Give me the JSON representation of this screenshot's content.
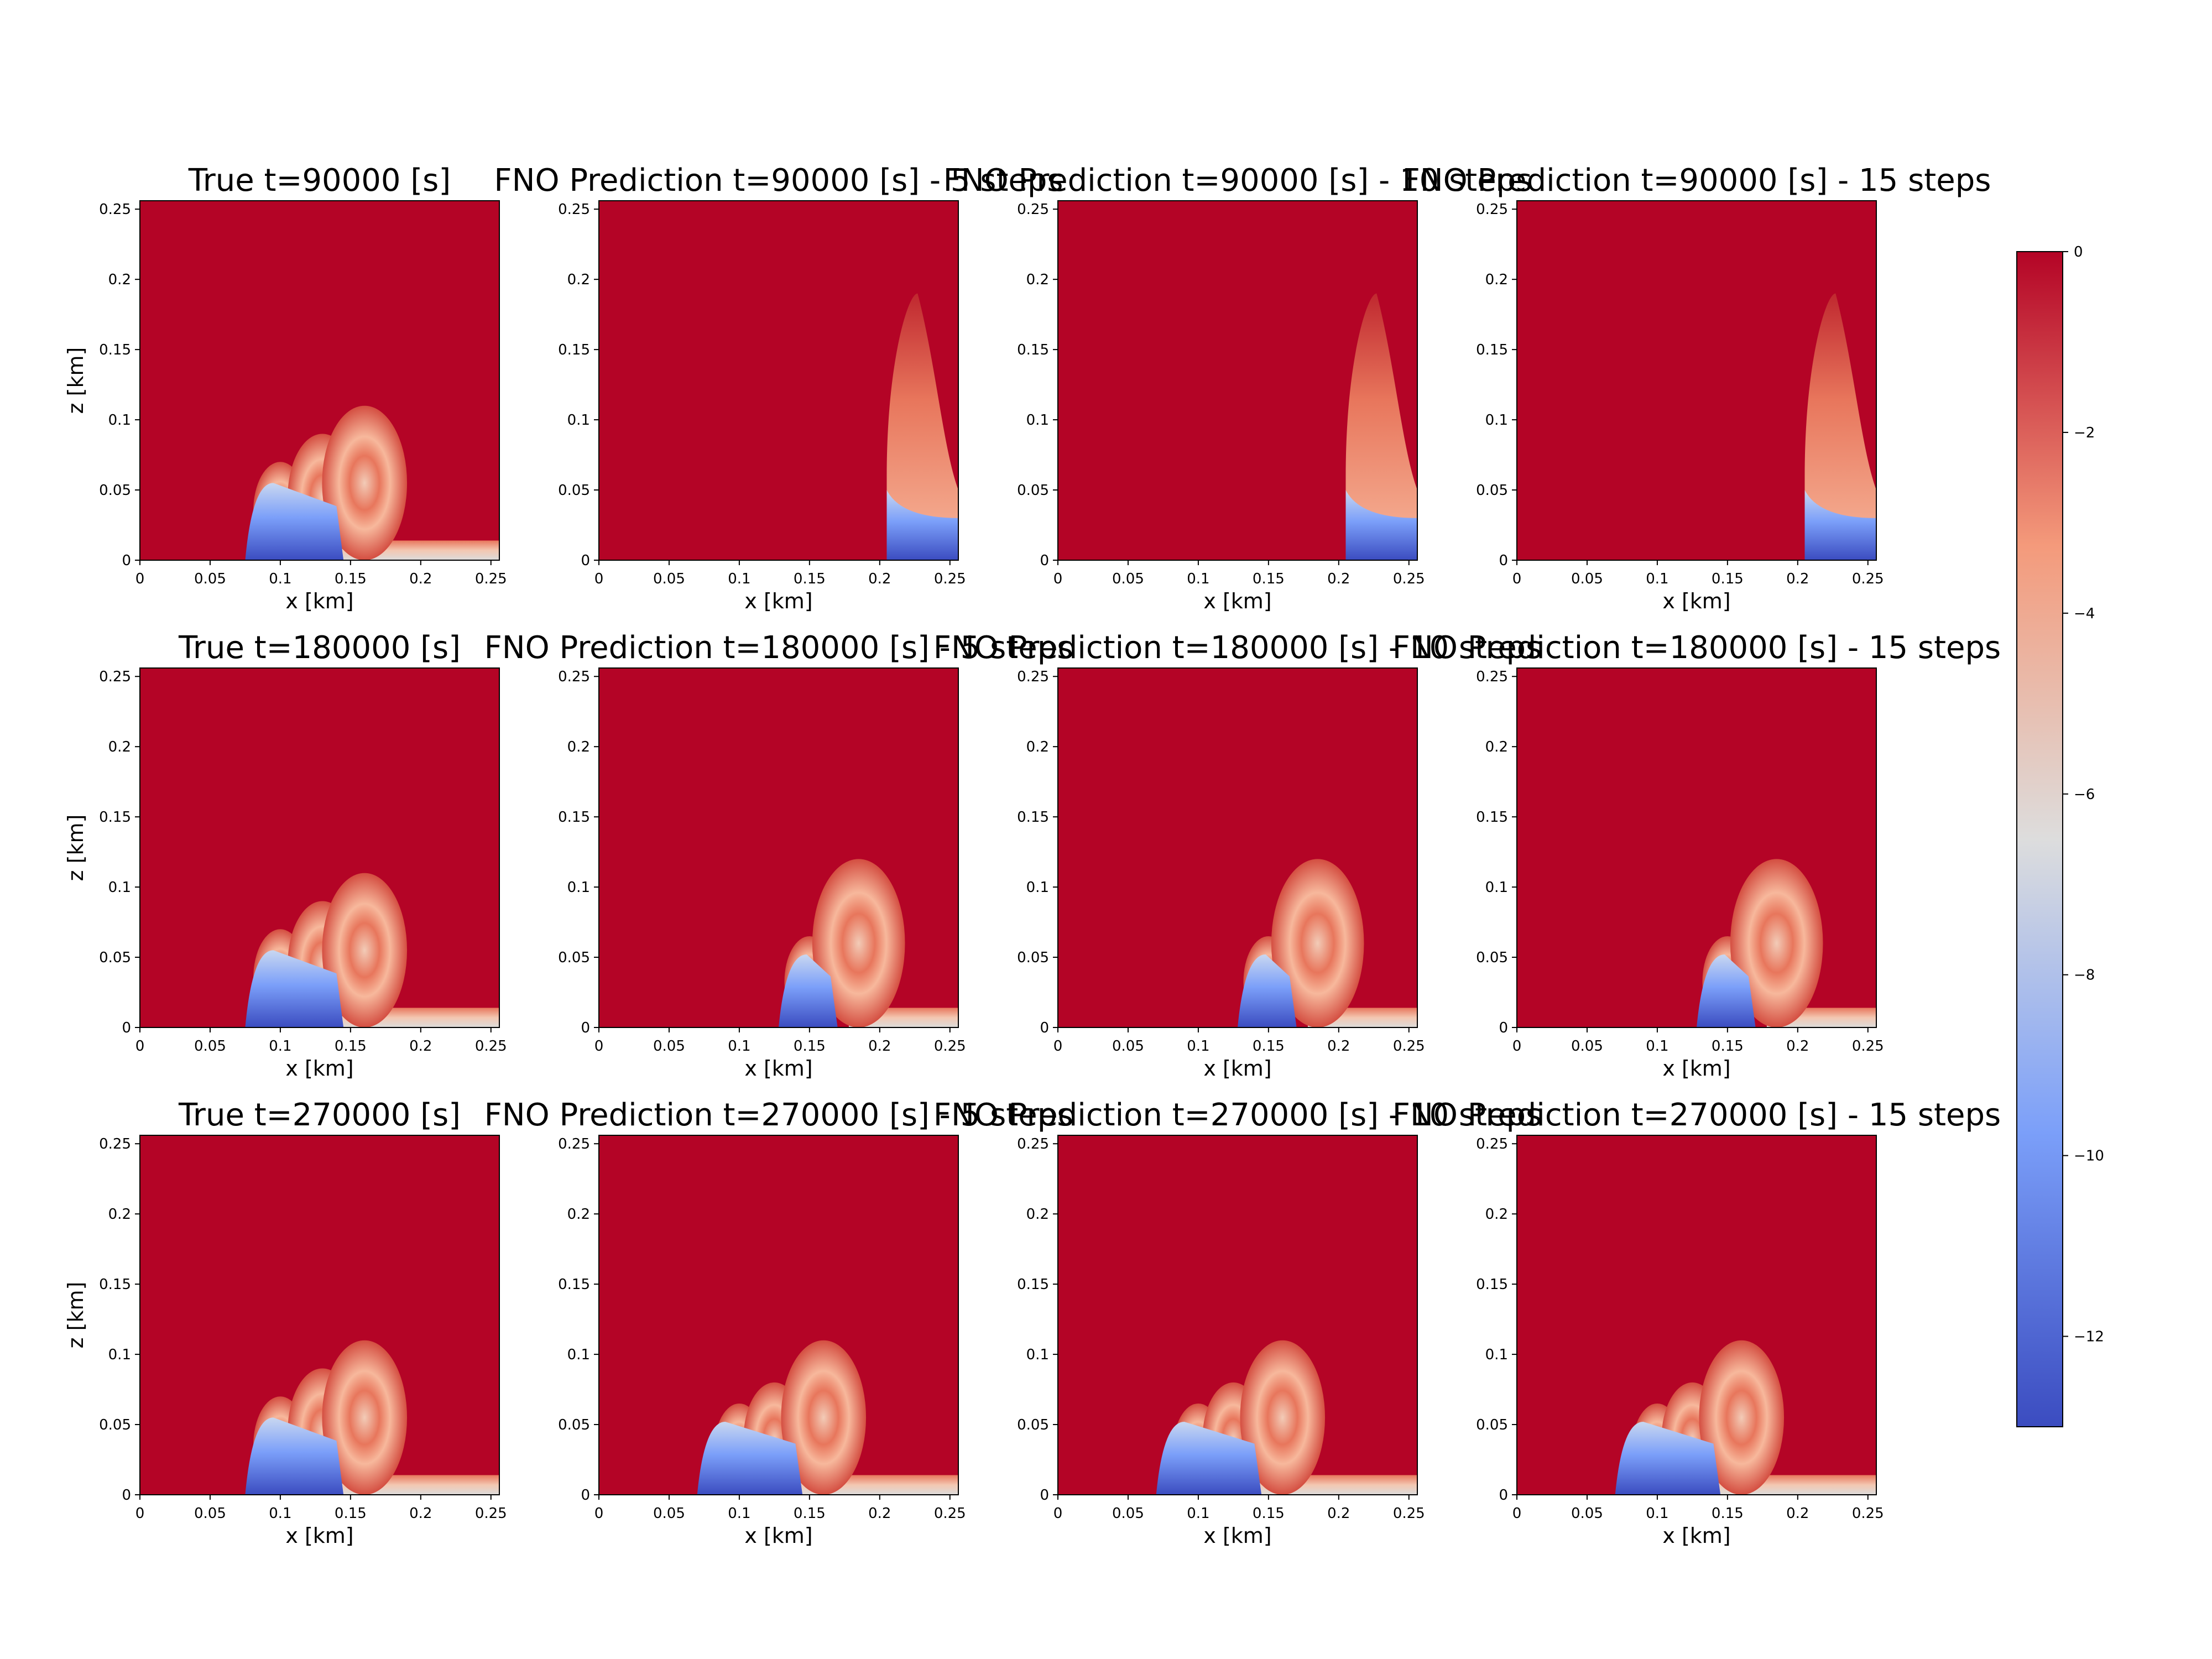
{
  "chart_data": {
    "type": "heatmap",
    "xlabel": "x [km]",
    "ylabel": "z [km]",
    "xlim": [
      0,
      0.256
    ],
    "ylim": [
      0,
      0.256
    ],
    "xticks": [
      "0",
      "0.05",
      "0.1",
      "0.15",
      "0.2",
      "0.25"
    ],
    "yticks": [
      "0",
      "0.05",
      "0.1",
      "0.15",
      "0.2",
      "0.25"
    ],
    "colormap": "coolwarm",
    "colorbar": {
      "vmin": -13,
      "vmax": 0,
      "ticks": [
        "0",
        "−2",
        "−4",
        "−6",
        "−8",
        "−10",
        "−12"
      ]
    },
    "colors": {
      "warm": "#b40426",
      "neutral": "#dddddd",
      "cool": "#3b4cc0"
    },
    "rows": [
      {
        "panels": [
          {
            "title": "True t=90000 [s]",
            "features": {
              "front_x": 0.075,
              "vortex_x": [
                0.1,
                0.13,
                0.16
              ],
              "vortex_top": [
                0.07,
                0.09,
                0.11
              ],
              "trail": true
            }
          },
          {
            "title": "FNO Prediction t=90000 [s] - 5 steps",
            "features": {
              "front_x": 0.205,
              "plume_x": 0.215,
              "plume_top": 0.19,
              "blue_base": true
            }
          },
          {
            "title": "FNO Prediction t=90000 [s] - 10 steps",
            "features": {
              "front_x": 0.205,
              "plume_x": 0.215,
              "plume_top": 0.19,
              "blue_base": true
            }
          },
          {
            "title": "FNO Prediction t=90000 [s] - 15 steps",
            "features": {
              "front_x": 0.205,
              "plume_x": 0.215,
              "plume_top": 0.19,
              "blue_base": true
            }
          }
        ]
      },
      {
        "panels": [
          {
            "title": "True t=180000 [s]",
            "features": {
              "front_x": 0.075,
              "vortex_x": [
                0.1,
                0.13,
                0.16
              ],
              "vortex_top": [
                0.07,
                0.09,
                0.11
              ],
              "trail": true
            }
          },
          {
            "title": "FNO Prediction t=180000 [s] - 5 steps",
            "features": {
              "front_x": 0.128,
              "vortex_x": [
                0.15,
                0.185
              ],
              "vortex_top": [
                0.065,
                0.12
              ],
              "trail": true
            }
          },
          {
            "title": "FNO Prediction t=180000 [s] - 10 steps",
            "features": {
              "front_x": 0.128,
              "vortex_x": [
                0.15,
                0.185
              ],
              "vortex_top": [
                0.065,
                0.12
              ],
              "trail": true
            }
          },
          {
            "title": "FNO Prediction t=180000 [s] - 15 steps",
            "features": {
              "front_x": 0.128,
              "vortex_x": [
                0.15,
                0.185
              ],
              "vortex_top": [
                0.065,
                0.12
              ],
              "trail": true
            }
          }
        ]
      },
      {
        "panels": [
          {
            "title": "True t=270000 [s]",
            "features": {
              "front_x": 0.075,
              "vortex_x": [
                0.1,
                0.13,
                0.16
              ],
              "vortex_top": [
                0.07,
                0.09,
                0.11
              ],
              "trail": true
            }
          },
          {
            "title": "FNO Prediction t=270000 [s] - 5 steps",
            "features": {
              "front_x": 0.07,
              "vortex_x": [
                0.1,
                0.125,
                0.16
              ],
              "vortex_top": [
                0.065,
                0.08,
                0.11
              ],
              "trail": true
            }
          },
          {
            "title": "FNO Prediction t=270000 [s] - 10 steps",
            "features": {
              "front_x": 0.07,
              "vortex_x": [
                0.1,
                0.125,
                0.16
              ],
              "vortex_top": [
                0.065,
                0.08,
                0.11
              ],
              "trail": true
            }
          },
          {
            "title": "FNO Prediction t=270000 [s] - 15 steps",
            "features": {
              "front_x": 0.07,
              "vortex_x": [
                0.1,
                0.125,
                0.16
              ],
              "vortex_top": [
                0.065,
                0.08,
                0.11
              ],
              "trail": true
            }
          }
        ]
      }
    ]
  }
}
